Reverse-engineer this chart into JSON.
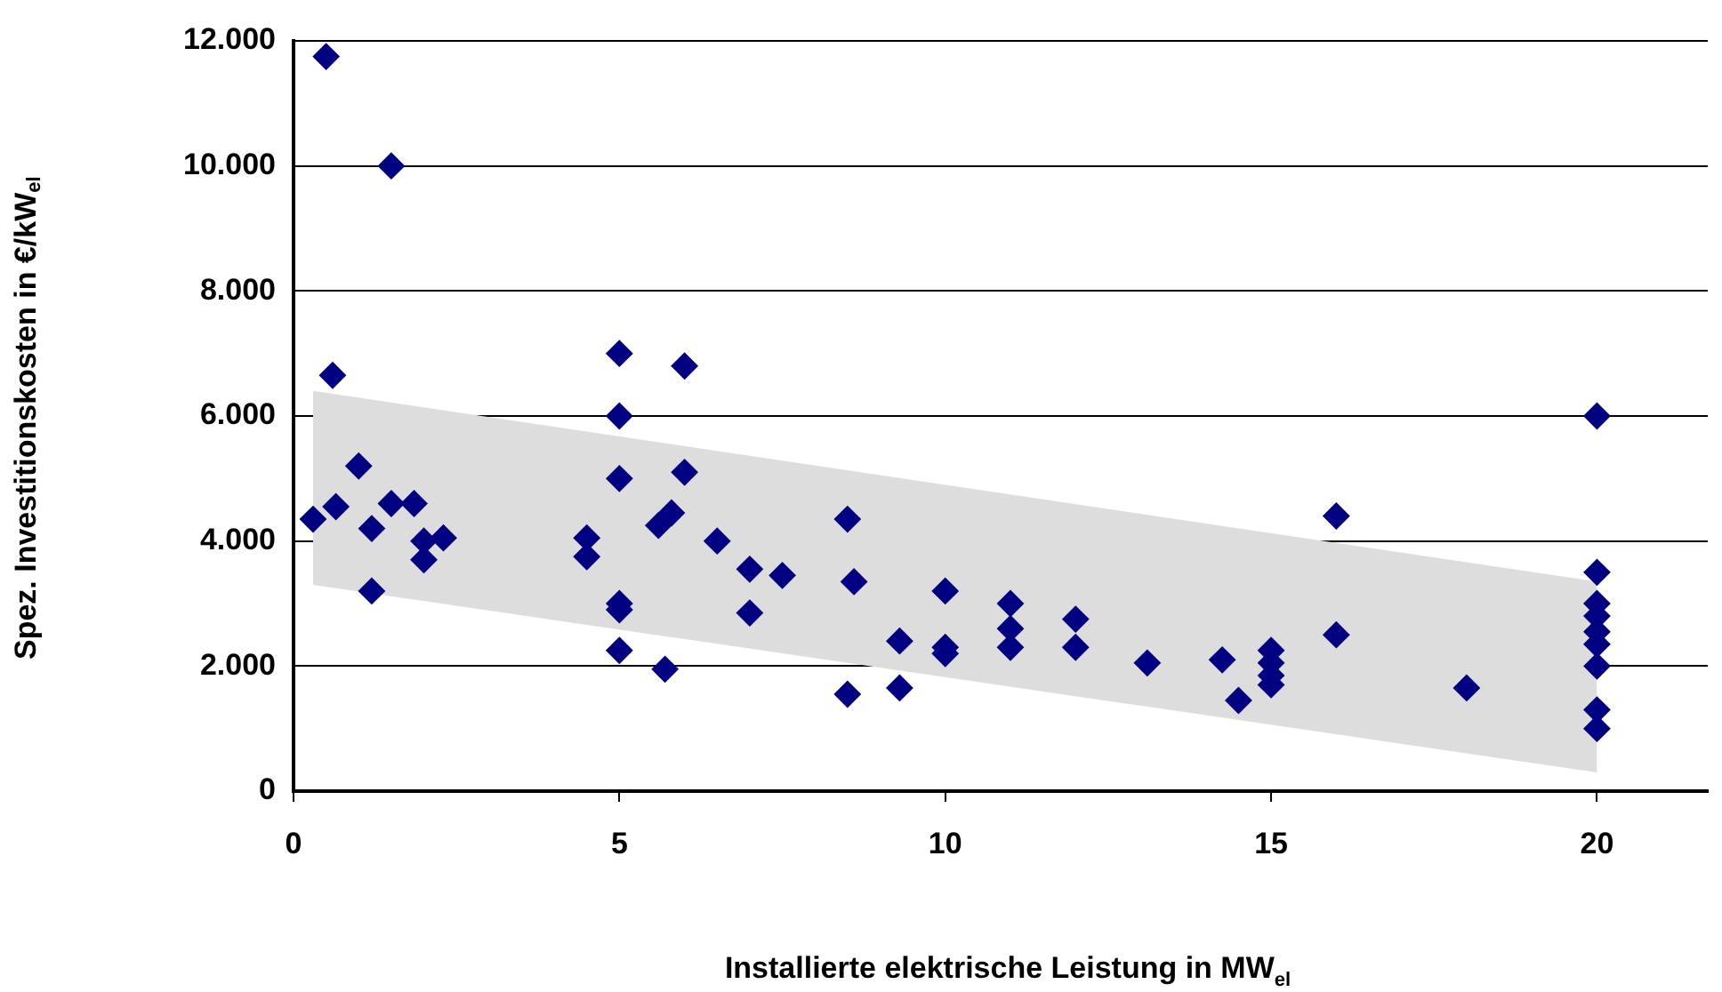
{
  "chart_data": {
    "type": "scatter",
    "xlabel": "Installierte elektrische Leistung in MW$_{el}$",
    "ylabel": "Spez. Investitionskosten in €/kW$_{el}$",
    "series": [
      {
        "type": "line",
        "color": "#dddddd",
        "x": [
          0.3,
          20
        ],
        "values": [
          null,
          null
        ],
        "lower": [
          3300,
          300
        ],
        "upper": [
          6400,
          3350
        ]
      },
      {
        "color": "#000080",
        "marker": "diamond",
        "x": [
          0.3,
          0.5,
          0.6,
          0.65,
          1.0,
          1.2,
          1.2,
          1.5,
          1.5,
          1.85,
          2.0,
          2.0,
          2.3,
          4.5,
          4.5,
          5.0,
          5.0,
          5.0,
          5.0,
          5.0,
          5.0,
          5.7,
          5.6,
          5.8,
          6.0,
          6.0,
          6.5,
          7.0,
          7.0,
          7.5,
          8.5,
          8.5,
          8.6,
          9.3,
          9.3,
          10.0,
          10.0,
          10.0,
          11.0,
          11.0,
          11.0,
          12.0,
          12.0,
          13.1,
          14.25,
          14.5,
          15.0,
          15.0,
          15.0,
          15.0,
          16.0,
          16.0,
          18.0,
          20,
          20,
          20,
          20,
          20,
          20,
          20,
          20,
          20
        ],
        "values": [
          4350,
          11750,
          6650,
          4550,
          5200,
          4200,
          3200,
          4600,
          10000,
          4600,
          4000,
          3700,
          4050,
          4050,
          3750,
          7000,
          6000,
          5000,
          3000,
          2900,
          2250,
          1950,
          4250,
          4450,
          6800,
          5100,
          4000,
          3550,
          2850,
          3450,
          4350,
          1550,
          3350,
          2400,
          1650,
          3200,
          2300,
          2200,
          3000,
          2600,
          2300,
          2750,
          2300,
          2050,
          2100,
          1450,
          2250,
          2050,
          1850,
          1700,
          4400,
          2500,
          1650,
          6000,
          3500,
          3000,
          2800,
          2550,
          2350,
          2000,
          1300,
          1000
        ]
      }
    ],
    "xlim": [
      0,
      21.7
    ],
    "xticks": [
      0,
      5,
      10,
      15,
      20
    ],
    "ylim": [
      0,
      12000
    ],
    "yticks": [
      {
        "value": 0,
        "label": "0"
      },
      {
        "value": 2000,
        "label": "2.000"
      },
      {
        "value": 4000,
        "label": "4.000"
      },
      {
        "value": 6000,
        "label": "6.000"
      },
      {
        "value": 8000,
        "label": "8.000"
      },
      {
        "value": 10000,
        "label": "10.000"
      },
      {
        "value": 12000,
        "label": "12.000"
      }
    ],
    "grid": "y",
    "legend": false
  }
}
